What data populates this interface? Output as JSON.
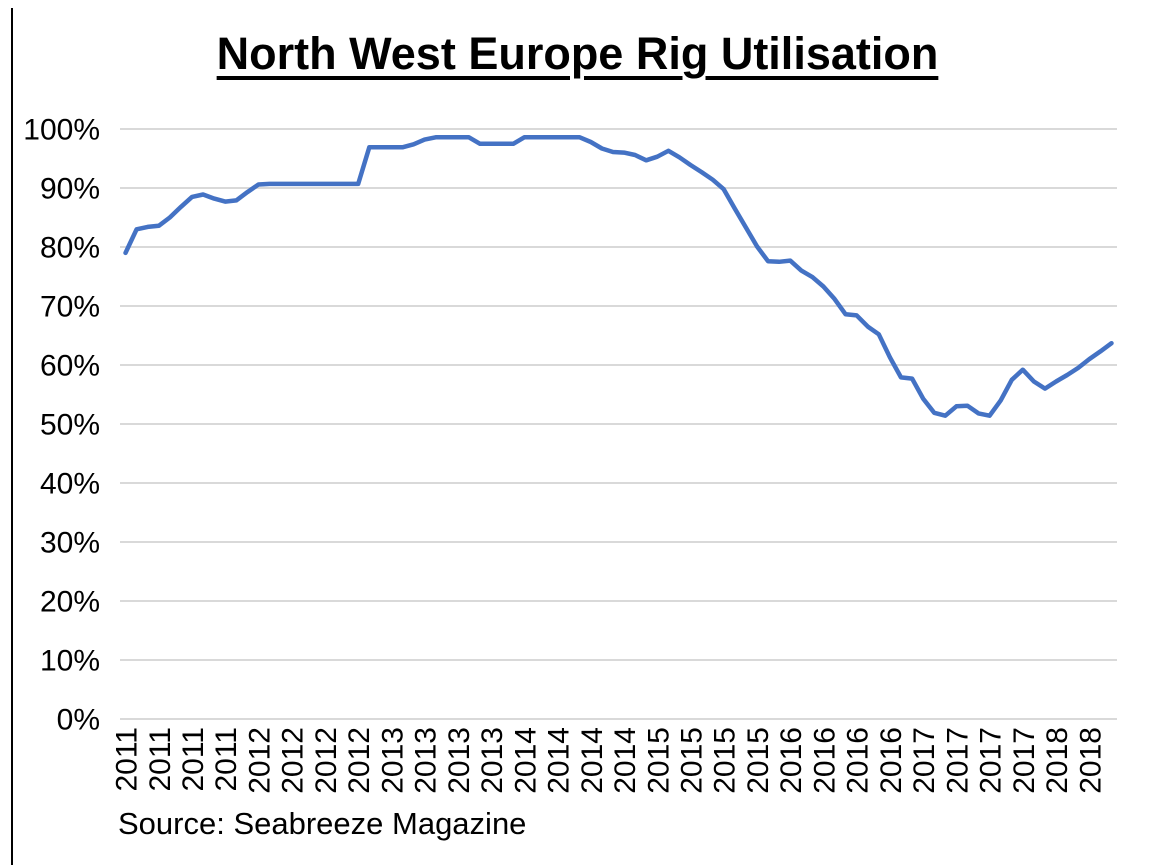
{
  "chart_data": {
    "type": "line",
    "title": "North West Europe Rig Utilisation",
    "source": "Source: Seabreeze Magazine",
    "series_name": "North West Europe rig utilisation",
    "unit": "%",
    "ylim": [
      0,
      100
    ],
    "y_tick_step": 10,
    "y_tick_labels": [
      "0%",
      "10%",
      "20%",
      "30%",
      "40%",
      "50%",
      "60%",
      "70%",
      "80%",
      "90%",
      "100%"
    ],
    "x_tick_labels": [
      "2011",
      "2011",
      "2011",
      "2011",
      "2012",
      "2012",
      "2012",
      "2012",
      "2013",
      "2013",
      "2013",
      "2013",
      "2014",
      "2014",
      "2014",
      "2014",
      "2015",
      "2015",
      "2015",
      "2015",
      "2016",
      "2016",
      "2016",
      "2016",
      "2017",
      "2017",
      "2017",
      "2017",
      "2018",
      "2018"
    ],
    "points_per_tick_label": 3,
    "values": [
      79.0,
      83.0,
      83.4,
      83.6,
      85.0,
      86.8,
      88.5,
      88.9,
      88.2,
      87.7,
      87.9,
      89.3,
      90.6,
      90.7,
      90.7,
      90.7,
      90.7,
      90.7,
      90.7,
      90.7,
      90.7,
      90.7,
      96.9,
      96.9,
      96.9,
      96.9,
      97.4,
      98.2,
      98.6,
      98.6,
      98.6,
      98.6,
      97.5,
      97.5,
      97.5,
      97.5,
      98.6,
      98.6,
      98.6,
      98.6,
      98.6,
      98.6,
      97.8,
      96.7,
      96.1,
      96.0,
      95.6,
      94.7,
      95.3,
      96.3,
      95.2,
      93.9,
      92.7,
      91.4,
      89.8,
      86.5,
      83.3,
      80.1,
      77.6,
      77.5,
      77.7,
      76.0,
      74.9,
      73.3,
      71.2,
      68.6,
      68.4,
      66.5,
      65.2,
      61.3,
      57.9,
      57.7,
      54.3,
      51.9,
      51.4,
      53.0,
      53.1,
      51.8,
      51.4,
      54.0,
      57.5,
      59.2,
      57.2,
      56.0,
      57.2,
      58.3,
      59.5,
      61.0,
      62.3,
      63.7
    ],
    "line_color": "#4472C4",
    "gridline_color": "#D9D9D9",
    "grid": "horizontal-only",
    "legend": "none",
    "xlabel": "",
    "ylabel": ""
  }
}
